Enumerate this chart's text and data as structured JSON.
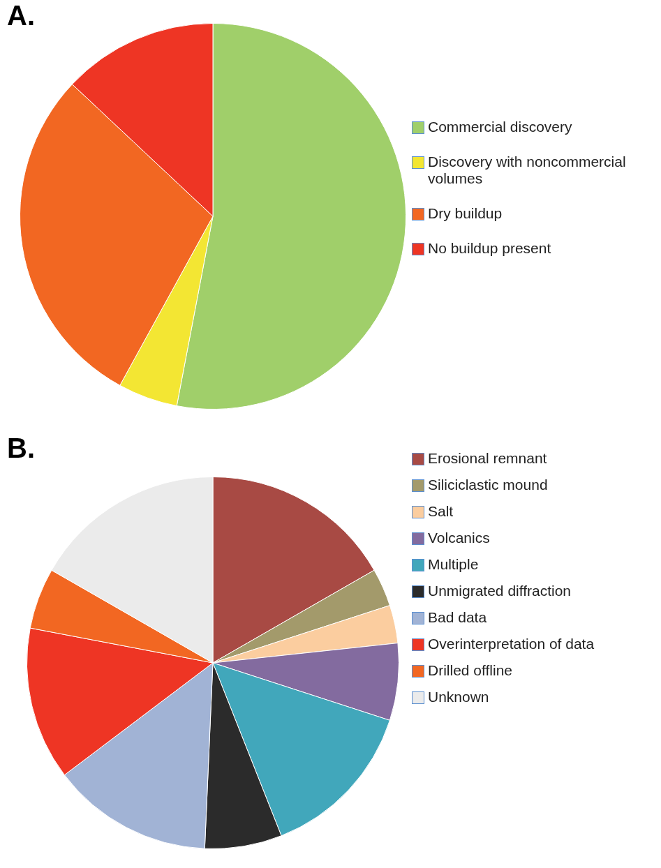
{
  "chart_data": [
    {
      "type": "pie",
      "title": "A.",
      "legend": "right",
      "categories": [
        "Commercial discovery",
        "Discovery with noncommercial volumes",
        "Dry buildup",
        "No buildup present"
      ],
      "values": [
        53,
        5,
        29,
        13
      ],
      "colors": [
        "#a0cf6a",
        "#f3e633",
        "#f26722",
        "#ee3524"
      ]
    },
    {
      "type": "pie",
      "title": "B.",
      "legend": "right",
      "categories": [
        "Erosional remnant",
        "Siliciclastic mound",
        "Salt",
        "Volcanics",
        "Multiple",
        "Unmigrated diffraction",
        "Bad data",
        "Overinterpretation of data",
        "Drilled offline",
        "Unknown"
      ],
      "values": [
        16.7,
        3.3,
        3.3,
        6.7,
        14,
        6.7,
        14,
        13.3,
        5.3,
        16.7
      ],
      "colors": [
        "#a84a44",
        "#a39a6b",
        "#fbcd9f",
        "#836b9f",
        "#41a7bb",
        "#2b2b2b",
        "#a1b3d5",
        "#ee3524",
        "#f26722",
        "#ebebeb"
      ]
    }
  ]
}
